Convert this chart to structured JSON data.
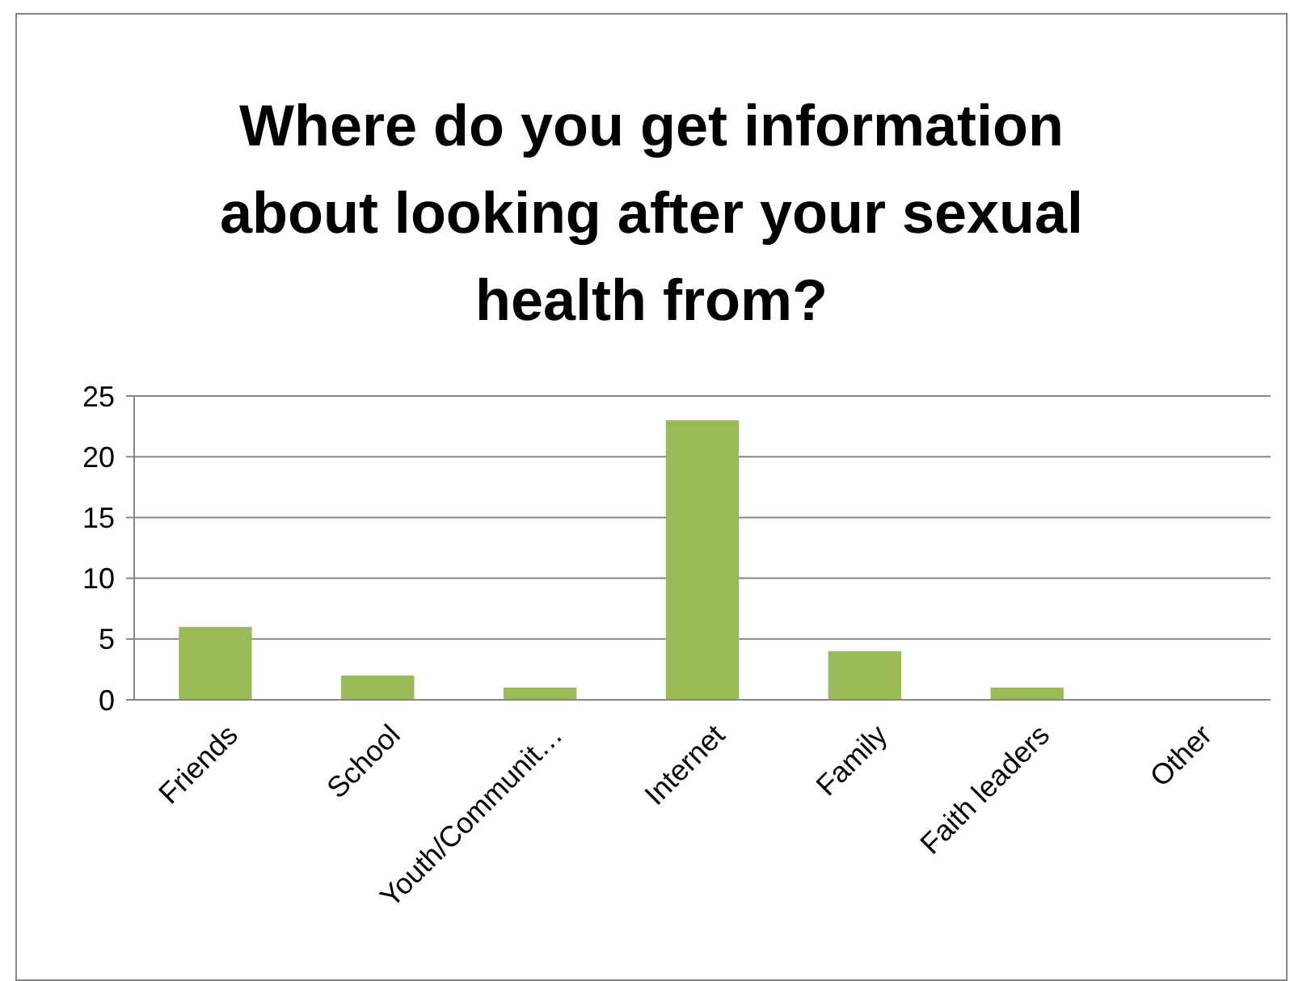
{
  "chart_data": {
    "type": "bar",
    "title": "Where do you get information about looking after your sexual health from?",
    "categories": [
      "Friends",
      "School",
      "Youth/Communit…",
      "Internet",
      "Family",
      "Faith leaders",
      "Other"
    ],
    "values": [
      6,
      2,
      1,
      23,
      4,
      1,
      0
    ],
    "color": "#9bbb59",
    "ylim": [
      0,
      25
    ],
    "yticks": [
      0,
      5,
      10,
      15,
      20,
      25
    ],
    "grid": "y"
  }
}
